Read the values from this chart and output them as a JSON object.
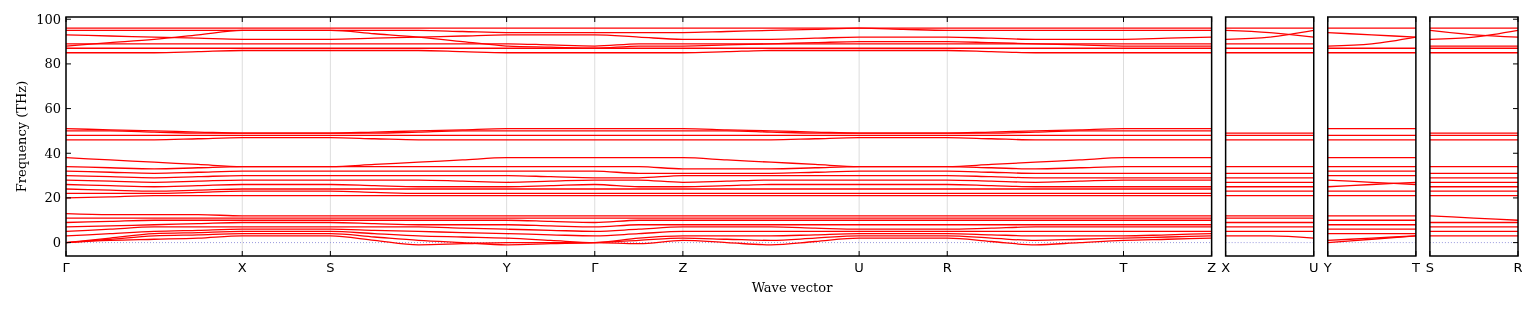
{
  "chart_data": [
    {
      "type": "line",
      "xlabel": "Wave vector",
      "ylabel": "Frequency (THz)",
      "ylim": [
        -6,
        101
      ],
      "yticks": [
        0,
        20,
        40,
        60,
        80,
        100
      ],
      "grid": "x",
      "tick_labels": "xy",
      "categories": [
        "Γ",
        null,
        null,
        null,
        "X",
        null,
        "S",
        null,
        null,
        null,
        "Y",
        null,
        "Γ",
        null,
        "Z",
        null,
        null,
        null,
        "U",
        null,
        "R",
        null,
        null,
        null,
        "T",
        null,
        "Z"
      ],
      "ref_lines": [
        {
          "axis": "y",
          "value": 0,
          "color": "#9999dd",
          "line_style": "dotted"
        }
      ],
      "series": [
        {
          "color": "#ff0000",
          "values": [
            0,
            1,
            1.5,
            2,
            3,
            3,
            3,
            1,
            -1,
            -0.5,
            0,
            0,
            0,
            -0.5,
            1,
            0,
            -1,
            0.5,
            2,
            2,
            2,
            0.5,
            -1,
            0,
            1,
            1.5,
            2
          ]
        },
        {
          "color": "#ff0000",
          "values": [
            0,
            1.5,
            3,
            3.5,
            4,
            4,
            4,
            2.5,
            1,
            0,
            -1,
            -0.5,
            0,
            1,
            2,
            1.5,
            1,
            2,
            3,
            3,
            3,
            2,
            1,
            1.5,
            2,
            2.5,
            3
          ]
        },
        {
          "color": "#ff0000",
          "values": [
            0,
            2,
            4,
            4.5,
            5,
            5,
            5,
            4,
            3,
            2.5,
            2,
            1,
            0,
            2,
            3,
            3,
            3,
            3.5,
            4,
            4,
            4,
            3.5,
            3,
            3,
            3,
            3.5,
            4
          ]
        },
        {
          "color": "#ff0000",
          "values": [
            3,
            4,
            5,
            5.5,
            6,
            6,
            6,
            5.5,
            5,
            4.5,
            4,
            3.5,
            3,
            4,
            5,
            5,
            5,
            5,
            5,
            5,
            5,
            5,
            5,
            5,
            5,
            5,
            5
          ]
        },
        {
          "color": "#ff0000",
          "values": [
            5,
            6,
            7,
            7,
            7,
            7,
            7,
            7,
            7,
            6.5,
            6,
            5.5,
            5,
            6,
            7,
            7,
            7,
            6.5,
            6,
            6,
            6,
            6.5,
            7,
            7,
            7,
            7,
            7
          ]
        },
        {
          "color": "#ff0000",
          "values": [
            7,
            7.5,
            8,
            8.5,
            9,
            9,
            9,
            8.5,
            8,
            8,
            8,
            7.5,
            7,
            8,
            8,
            8,
            8,
            8,
            8,
            8,
            8,
            8,
            8,
            8,
            8,
            8,
            8
          ]
        },
        {
          "color": "#ff0000",
          "values": [
            9,
            9.5,
            10,
            10,
            10,
            10,
            10,
            10,
            10,
            10,
            10,
            9.5,
            9,
            10,
            10,
            10,
            10,
            10,
            10,
            10,
            10,
            10,
            10,
            10,
            10,
            10,
            10
          ]
        },
        {
          "color": "#ff0000",
          "values": [
            11,
            11,
            11,
            11,
            11,
            11,
            11,
            11,
            11,
            11,
            11,
            11,
            11,
            11,
            11,
            11,
            11,
            11,
            11,
            11,
            11,
            11,
            11,
            11,
            11,
            11,
            11
          ]
        },
        {
          "color": "#ff0000",
          "values": [
            13,
            12.5,
            12.5,
            12.5,
            12,
            12,
            12,
            12,
            12,
            12,
            12,
            12,
            12,
            12,
            12,
            12,
            12,
            12,
            12,
            12,
            12,
            12,
            12,
            12,
            12,
            12,
            12
          ]
        },
        {
          "color": "#ff0000",
          "values": [
            20,
            20.5,
            21,
            21,
            21,
            21,
            21,
            21,
            21,
            21,
            21,
            21,
            21,
            21,
            21,
            21,
            21,
            21,
            21,
            21,
            21,
            21,
            21,
            21,
            21,
            21,
            21
          ]
        },
        {
          "color": "#ff0000",
          "values": [
            22,
            22,
            22,
            22.5,
            23,
            23,
            23,
            22.5,
            22,
            22,
            22,
            22,
            22,
            22,
            22,
            22,
            22,
            22,
            22,
            22,
            22,
            22,
            22,
            22,
            22,
            22,
            22
          ]
        },
        {
          "color": "#ff0000",
          "values": [
            24,
            23.5,
            23,
            23.5,
            24,
            24,
            24,
            24,
            24,
            24,
            24,
            24,
            24,
            24,
            24,
            24,
            24,
            24,
            24,
            24,
            24,
            24,
            24,
            24,
            24,
            24,
            24
          ]
        },
        {
          "color": "#ff0000",
          "values": [
            26,
            25.5,
            25,
            25.5,
            26,
            26,
            26,
            25.5,
            25,
            25,
            25,
            25.5,
            26,
            25,
            25,
            25.5,
            26,
            26,
            26,
            26,
            26,
            25.5,
            25,
            25,
            25,
            25,
            25
          ]
        },
        {
          "color": "#ff0000",
          "values": [
            28,
            27.5,
            27,
            27.5,
            28,
            28,
            28,
            28,
            28,
            27.5,
            27,
            27.5,
            28,
            28,
            27,
            27.5,
            28,
            28,
            28,
            28,
            28,
            27.5,
            27,
            27.5,
            28,
            28,
            28
          ]
        },
        {
          "color": "#ff0000",
          "values": [
            30,
            29.5,
            29,
            29.5,
            30,
            30,
            30,
            30,
            30,
            30,
            30,
            29.5,
            29,
            29,
            30,
            30,
            30,
            30,
            30,
            30,
            30,
            29.5,
            29,
            29,
            29,
            29,
            29
          ]
        },
        {
          "color": "#ff0000",
          "values": [
            32,
            31.5,
            31,
            31.5,
            32,
            32,
            32,
            32,
            32,
            32,
            32,
            32,
            32,
            31,
            31,
            31,
            31,
            31.5,
            32,
            32,
            32,
            31.5,
            31,
            31,
            31,
            31,
            31
          ]
        },
        {
          "color": "#ff0000",
          "values": [
            34,
            33.5,
            33,
            33.5,
            34,
            34,
            34,
            34,
            34,
            34,
            34,
            34,
            34,
            34,
            33,
            33,
            33,
            33.5,
            34,
            34,
            34,
            33.5,
            33,
            33.5,
            34,
            34,
            34
          ]
        },
        {
          "color": "#ff0000",
          "values": [
            38,
            37,
            36,
            35,
            34,
            34,
            34,
            35,
            36,
            37,
            38,
            38,
            38,
            38,
            38,
            37,
            36,
            35,
            34,
            34,
            34,
            35,
            36,
            37,
            38,
            38,
            38
          ]
        },
        {
          "color": "#ff0000",
          "values": [
            46,
            46,
            46,
            46.5,
            47,
            47,
            47,
            46.5,
            46,
            46,
            46,
            46,
            46,
            46,
            46,
            46,
            46,
            46.5,
            47,
            47,
            47,
            46.5,
            46,
            46,
            46,
            46,
            46
          ]
        },
        {
          "color": "#ff0000",
          "values": [
            48,
            48,
            48,
            48,
            48,
            48,
            48,
            48,
            48,
            48,
            48,
            48,
            48,
            48,
            48,
            48,
            48,
            48,
            48,
            48,
            48,
            48,
            48,
            48,
            48,
            48,
            48
          ]
        },
        {
          "color": "#ff0000",
          "values": [
            50,
            50,
            49.5,
            49,
            49,
            49,
            49,
            49,
            49.5,
            50,
            50,
            50,
            50,
            50,
            50,
            50,
            49.5,
            49,
            49,
            49,
            49,
            49,
            49.5,
            50,
            50,
            50,
            50
          ]
        },
        {
          "color": "#ff0000",
          "values": [
            51,
            50.5,
            50,
            49.5,
            49,
            49,
            49,
            49.5,
            50,
            50.5,
            51,
            51,
            51,
            51,
            51,
            50.5,
            50,
            49.5,
            49,
            49,
            49,
            49.5,
            50,
            50.5,
            51,
            51,
            51
          ]
        },
        {
          "color": "#ff0000",
          "values": [
            85,
            85,
            85,
            85.5,
            86,
            86,
            86,
            86,
            86,
            85.5,
            85,
            85,
            85,
            85,
            85,
            85.5,
            86,
            86,
            86,
            86,
            86,
            85.5,
            85,
            85,
            85,
            85,
            85
          ]
        },
        {
          "color": "#ff0000",
          "values": [
            87,
            87,
            87,
            87,
            87,
            87,
            87,
            87,
            87,
            87,
            87,
            87,
            87,
            87,
            87,
            87,
            87,
            87,
            87,
            87,
            87,
            87,
            87,
            87,
            87,
            87,
            87
          ]
        },
        {
          "color": "#ff0000",
          "values": [
            88,
            89.5,
            91,
            93,
            95,
            95,
            95,
            93.5,
            92,
            90,
            88,
            87.5,
            87,
            88,
            88,
            88.5,
            89,
            89.5,
            90,
            90,
            90,
            89.5,
            89,
            88.5,
            88,
            88,
            88
          ]
        },
        {
          "color": "#ff0000",
          "values": [
            89,
            89,
            89,
            89,
            89,
            89,
            89,
            89,
            89,
            89,
            89,
            88.5,
            88,
            89,
            89,
            89,
            89,
            89,
            89,
            89,
            89,
            89,
            89,
            89,
            89,
            89,
            89
          ]
        },
        {
          "color": "#ff0000",
          "values": [
            93,
            92.5,
            92,
            91.5,
            91,
            91,
            91,
            91.5,
            92,
            92.5,
            93,
            93,
            93,
            92,
            91,
            91,
            91,
            91.5,
            92,
            92,
            92,
            91.5,
            91,
            91,
            91,
            91.5,
            92
          ]
        },
        {
          "color": "#ff0000",
          "values": [
            95,
            95,
            95,
            95,
            95,
            95,
            95,
            95,
            95,
            94.5,
            94,
            94,
            94,
            94,
            94,
            94.5,
            95,
            95.5,
            96,
            95.5,
            95,
            95,
            95,
            95,
            95,
            95,
            95
          ]
        },
        {
          "color": "#ff0000",
          "values": [
            96,
            96,
            96,
            96,
            96,
            96,
            96,
            96,
            96,
            96,
            96,
            96,
            96,
            96,
            96,
            96,
            96,
            96,
            96,
            96,
            96,
            96,
            96,
            96,
            96,
            96,
            96
          ]
        }
      ]
    },
    {
      "type": "line",
      "ylim": [
        -6,
        101
      ],
      "yticks": [
        0,
        20,
        40,
        60,
        80,
        100
      ],
      "tick_labels": "x",
      "categories": [
        "X",
        null,
        "U"
      ],
      "ref_lines": [
        {
          "axis": "y",
          "value": 0,
          "color": "#9999dd",
          "line_style": "dotted"
        }
      ],
      "series": [
        {
          "color": "#ff0000",
          "values": [
            3,
            3,
            2
          ]
        },
        {
          "color": "#ff0000",
          "values": [
            5,
            5,
            5
          ]
        },
        {
          "color": "#ff0000",
          "values": [
            7,
            7,
            7
          ]
        },
        {
          "color": "#ff0000",
          "values": [
            9,
            9,
            9
          ]
        },
        {
          "color": "#ff0000",
          "values": [
            11,
            11,
            11
          ]
        },
        {
          "color": "#ff0000",
          "values": [
            12,
            12,
            12
          ]
        },
        {
          "color": "#ff0000",
          "values": [
            21,
            21,
            21
          ]
        },
        {
          "color": "#ff0000",
          "values": [
            23,
            23,
            23
          ]
        },
        {
          "color": "#ff0000",
          "values": [
            25,
            25,
            25
          ]
        },
        {
          "color": "#ff0000",
          "values": [
            27,
            27,
            27
          ]
        },
        {
          "color": "#ff0000",
          "values": [
            29,
            29,
            29
          ]
        },
        {
          "color": "#ff0000",
          "values": [
            31,
            31,
            31
          ]
        },
        {
          "color": "#ff0000",
          "values": [
            34,
            34,
            34
          ]
        },
        {
          "color": "#ff0000",
          "values": [
            46,
            46,
            46
          ]
        },
        {
          "color": "#ff0000",
          "values": [
            48,
            48,
            48
          ]
        },
        {
          "color": "#ff0000",
          "values": [
            49,
            49,
            49
          ]
        },
        {
          "color": "#ff0000",
          "values": [
            85,
            85,
            85
          ]
        },
        {
          "color": "#ff0000",
          "values": [
            87,
            87,
            87
          ]
        },
        {
          "color": "#ff0000",
          "values": [
            89,
            89,
            89
          ]
        },
        {
          "color": "#ff0000",
          "values": [
            91,
            92,
            95
          ]
        },
        {
          "color": "#ff0000",
          "values": [
            95,
            94,
            92
          ]
        },
        {
          "color": "#ff0000",
          "values": [
            96,
            96,
            96
          ]
        }
      ]
    },
    {
      "type": "line",
      "ylim": [
        -6,
        101
      ],
      "yticks": [
        0,
        20,
        40,
        60,
        80,
        100
      ],
      "tick_labels": "x",
      "categories": [
        "Y",
        null,
        "T"
      ],
      "ref_lines": [
        {
          "axis": "y",
          "value": 0,
          "color": "#9999dd",
          "line_style": "dotted"
        }
      ],
      "series": [
        {
          "color": "#ff0000",
          "values": [
            0,
            1.5,
            3
          ]
        },
        {
          "color": "#ff0000",
          "values": [
            1,
            2,
            3
          ]
        },
        {
          "color": "#ff0000",
          "values": [
            4,
            4,
            4
          ]
        },
        {
          "color": "#ff0000",
          "values": [
            6,
            6,
            6
          ]
        },
        {
          "color": "#ff0000",
          "values": [
            8,
            8,
            8
          ]
        },
        {
          "color": "#ff0000",
          "values": [
            10,
            10,
            10
          ]
        },
        {
          "color": "#ff0000",
          "values": [
            12,
            12,
            12
          ]
        },
        {
          "color": "#ff0000",
          "values": [
            21,
            21,
            21
          ]
        },
        {
          "color": "#ff0000",
          "values": [
            23,
            23,
            23
          ]
        },
        {
          "color": "#ff0000",
          "values": [
            25,
            26,
            27
          ]
        },
        {
          "color": "#ff0000",
          "values": [
            28,
            27,
            26
          ]
        },
        {
          "color": "#ff0000",
          "values": [
            30,
            30,
            30
          ]
        },
        {
          "color": "#ff0000",
          "values": [
            32,
            32,
            32
          ]
        },
        {
          "color": "#ff0000",
          "values": [
            34,
            34,
            34
          ]
        },
        {
          "color": "#ff0000",
          "values": [
            38,
            38,
            38
          ]
        },
        {
          "color": "#ff0000",
          "values": [
            46,
            46,
            46
          ]
        },
        {
          "color": "#ff0000",
          "values": [
            48,
            48,
            48
          ]
        },
        {
          "color": "#ff0000",
          "values": [
            51,
            51,
            51
          ]
        },
        {
          "color": "#ff0000",
          "values": [
            85,
            85,
            85
          ]
        },
        {
          "color": "#ff0000",
          "values": [
            87,
            87,
            87
          ]
        },
        {
          "color": "#ff0000",
          "values": [
            88,
            89,
            92
          ]
        },
        {
          "color": "#ff0000",
          "values": [
            94,
            93,
            92
          ]
        },
        {
          "color": "#ff0000",
          "values": [
            96,
            96,
            96
          ]
        }
      ]
    },
    {
      "type": "line",
      "ylim": [
        -6,
        101
      ],
      "yticks": [
        0,
        20,
        40,
        60,
        80,
        100
      ],
      "tick_labels": "x",
      "categories": [
        "S",
        null,
        "R"
      ],
      "ref_lines": [
        {
          "axis": "y",
          "value": 0,
          "color": "#9999dd",
          "line_style": "dotted"
        }
      ],
      "series": [
        {
          "color": "#ff0000",
          "values": [
            3,
            3,
            3
          ]
        },
        {
          "color": "#ff0000",
          "values": [
            5,
            5,
            5
          ]
        },
        {
          "color": "#ff0000",
          "values": [
            7,
            7,
            7
          ]
        },
        {
          "color": "#ff0000",
          "values": [
            9,
            9,
            9
          ]
        },
        {
          "color": "#ff0000",
          "values": [
            12,
            11,
            10
          ]
        },
        {
          "color": "#ff0000",
          "values": [
            21,
            21,
            21
          ]
        },
        {
          "color": "#ff0000",
          "values": [
            23,
            23,
            23
          ]
        },
        {
          "color": "#ff0000",
          "values": [
            25,
            25,
            25
          ]
        },
        {
          "color": "#ff0000",
          "values": [
            27,
            27,
            27
          ]
        },
        {
          "color": "#ff0000",
          "values": [
            29,
            29,
            29
          ]
        },
        {
          "color": "#ff0000",
          "values": [
            31,
            31,
            31
          ]
        },
        {
          "color": "#ff0000",
          "values": [
            34,
            34,
            34
          ]
        },
        {
          "color": "#ff0000",
          "values": [
            46,
            46,
            46
          ]
        },
        {
          "color": "#ff0000",
          "values": [
            48,
            48,
            48
          ]
        },
        {
          "color": "#ff0000",
          "values": [
            49,
            49,
            49
          ]
        },
        {
          "color": "#ff0000",
          "values": [
            85,
            85,
            85
          ]
        },
        {
          "color": "#ff0000",
          "values": [
            87,
            87,
            87
          ]
        },
        {
          "color": "#ff0000",
          "values": [
            88,
            88,
            88
          ]
        },
        {
          "color": "#ff0000",
          "values": [
            91,
            92,
            95
          ]
        },
        {
          "color": "#ff0000",
          "values": [
            95,
            93,
            92
          ]
        },
        {
          "color": "#ff0000",
          "values": [
            96,
            96,
            96
          ]
        }
      ]
    }
  ]
}
